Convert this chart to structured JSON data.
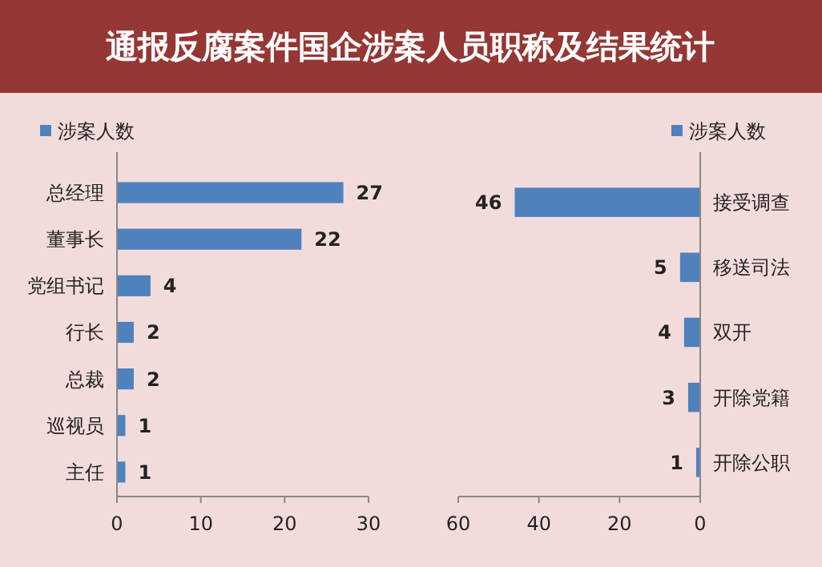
{
  "chart_data": [
    {
      "type": "bar",
      "title": "通报反腐案件国企涉案人员职称及结果统计",
      "orientation": "horizontal",
      "categories": [
        "总经理",
        "董事长",
        "党组书记",
        "行长",
        "总裁",
        "巡视员",
        "主任"
      ],
      "series": [
        {
          "name": "涉案人数",
          "color": "#4f81bd",
          "values": [
            27,
            22,
            4,
            2,
            2,
            1,
            1
          ]
        }
      ],
      "xlim": [
        0,
        30
      ],
      "xticks": [
        0,
        10,
        20,
        30
      ],
      "data_labels": true,
      "legend": "top left"
    },
    {
      "type": "bar",
      "orientation": "horizontal",
      "categories": [
        "接受调查",
        "移送司法",
        "双开",
        "开除党籍",
        "开除公职"
      ],
      "series": [
        {
          "name": "涉案人数",
          "color": "#4f81bd",
          "values": [
            46,
            5,
            4,
            3,
            1
          ]
        }
      ],
      "xlim": [
        60,
        0
      ],
      "xticks": [
        60,
        40,
        20,
        0
      ],
      "data_labels": true,
      "legend": "top right"
    }
  ]
}
